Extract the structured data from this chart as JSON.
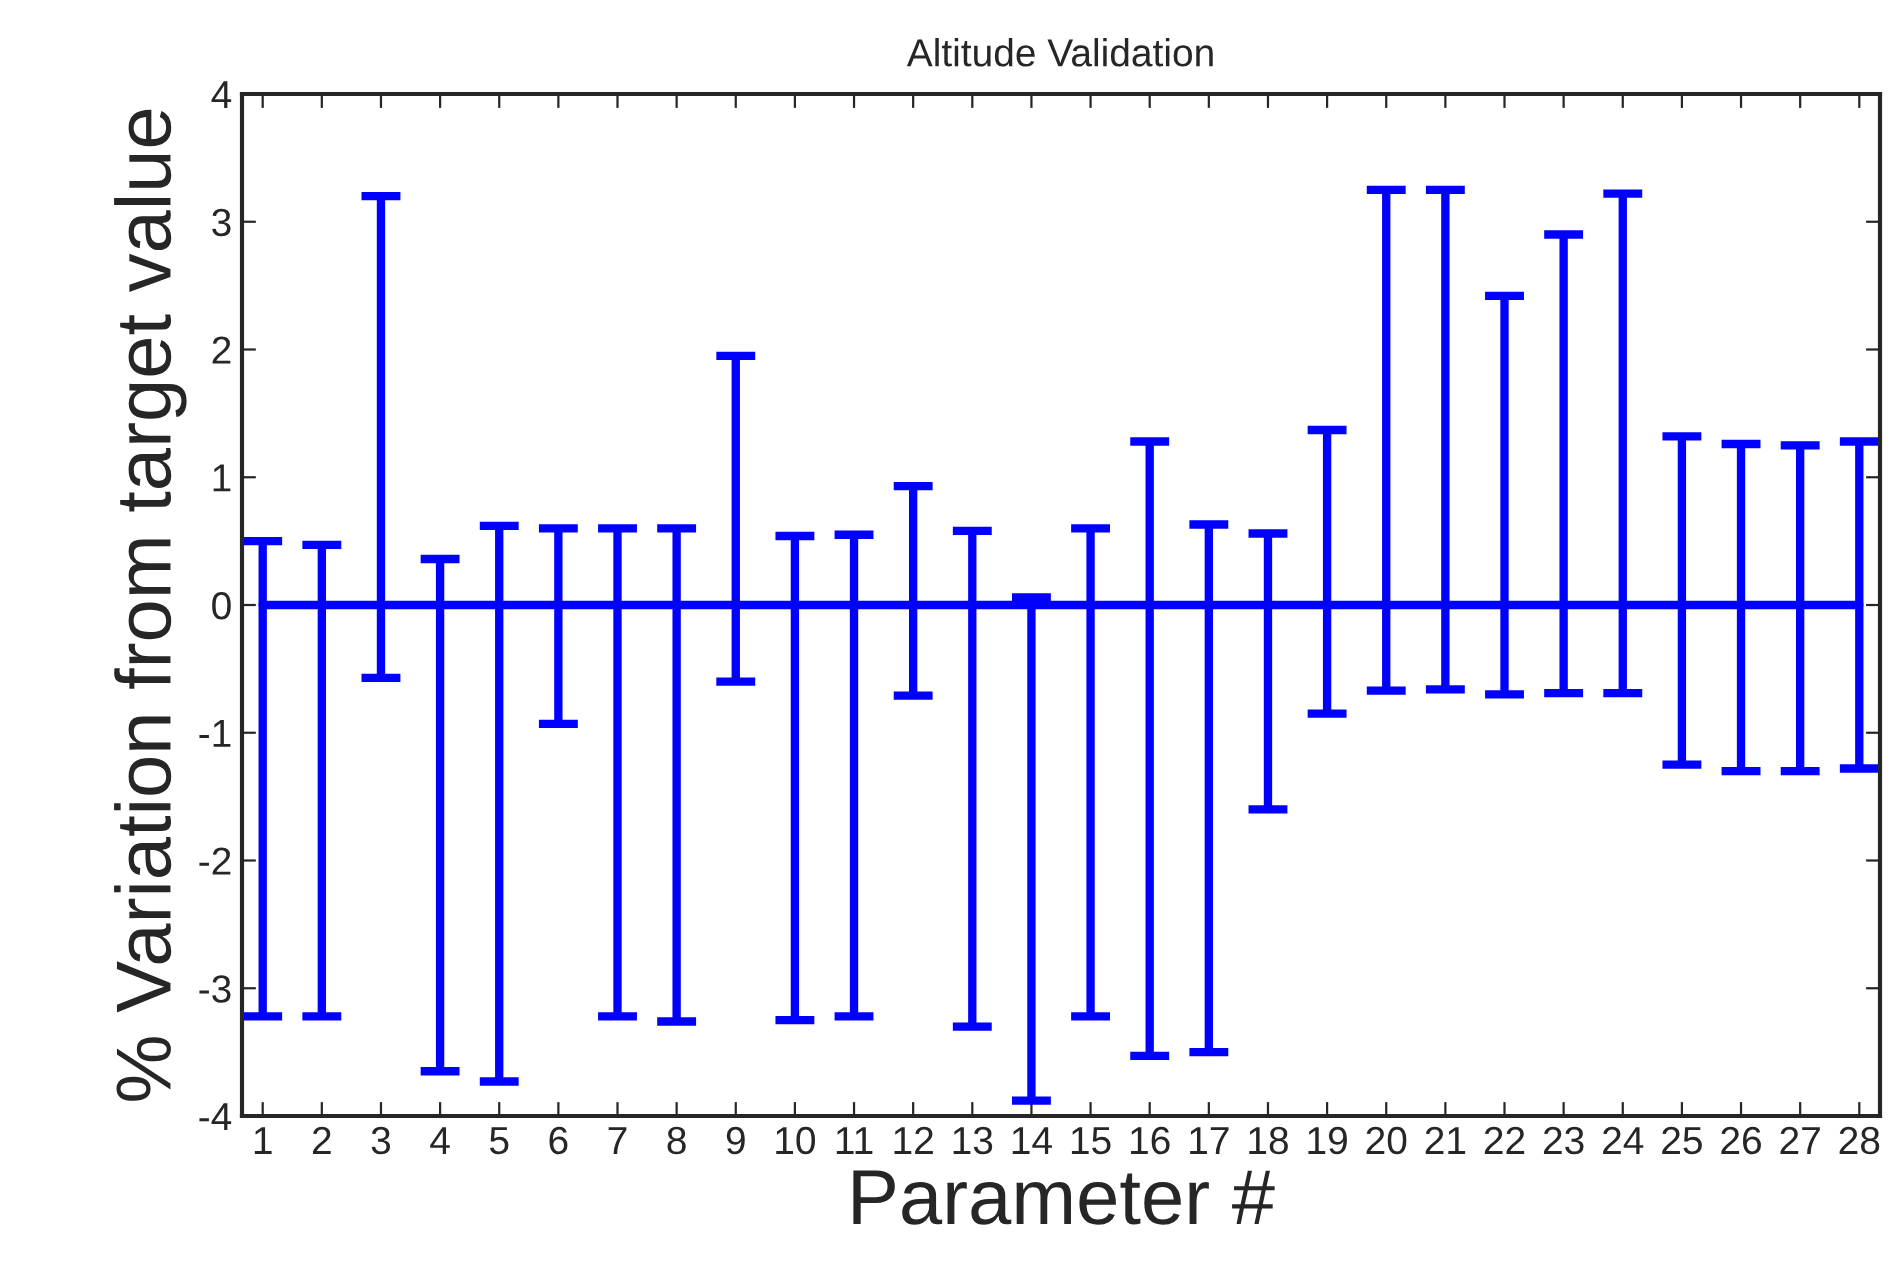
{
  "chart_data": {
    "type": "line",
    "title": "Altitude Validation",
    "xlabel": "Parameter #",
    "ylabel": "% Variation from target value",
    "categories": [
      "1",
      "2",
      "3",
      "4",
      "5",
      "6",
      "7",
      "8",
      "9",
      "10",
      "11",
      "12",
      "13",
      "14",
      "15",
      "16",
      "17",
      "18",
      "19",
      "20",
      "21",
      "22",
      "23",
      "24",
      "25",
      "26",
      "27",
      "28"
    ],
    "series": [
      {
        "color": "#0000ff",
        "values": [
          0,
          0,
          0,
          0,
          0,
          0,
          0,
          0,
          0,
          0,
          0,
          0,
          0,
          0,
          0,
          0,
          0,
          0,
          0,
          0,
          0,
          0,
          0,
          0,
          0,
          0,
          0,
          0
        ],
        "errors": [
          [
            -3.22,
            0.5
          ],
          [
            -3.22,
            0.47
          ],
          [
            -0.57,
            3.2
          ],
          [
            -3.65,
            0.36
          ],
          [
            -3.73,
            0.62
          ],
          [
            -0.93,
            0.6
          ],
          [
            -3.22,
            0.6
          ],
          [
            -3.26,
            0.6
          ],
          [
            -0.6,
            1.95
          ],
          [
            -3.25,
            0.54
          ],
          [
            -3.22,
            0.55
          ],
          [
            -0.71,
            0.93
          ],
          [
            -3.3,
            0.58
          ],
          [
            -3.88,
            0.06
          ],
          [
            -3.22,
            0.6
          ],
          [
            -3.53,
            1.28
          ],
          [
            -3.5,
            0.63
          ],
          [
            -1.6,
            0.56
          ],
          [
            -0.85,
            1.37
          ],
          [
            -0.67,
            3.25
          ],
          [
            -0.66,
            3.25
          ],
          [
            -0.7,
            2.42
          ],
          [
            -0.69,
            2.9
          ],
          [
            -0.69,
            3.22
          ],
          [
            -1.25,
            1.32
          ],
          [
            -1.3,
            1.26
          ],
          [
            -1.3,
            1.25
          ],
          [
            -1.28,
            1.28
          ]
        ]
      }
    ],
    "ylim": [
      -4,
      4
    ],
    "yticks": [
      -4,
      -3,
      -2,
      -1,
      0,
      1,
      2,
      3,
      4
    ],
    "grid": false,
    "marker": "none",
    "line_style": "solid"
  }
}
